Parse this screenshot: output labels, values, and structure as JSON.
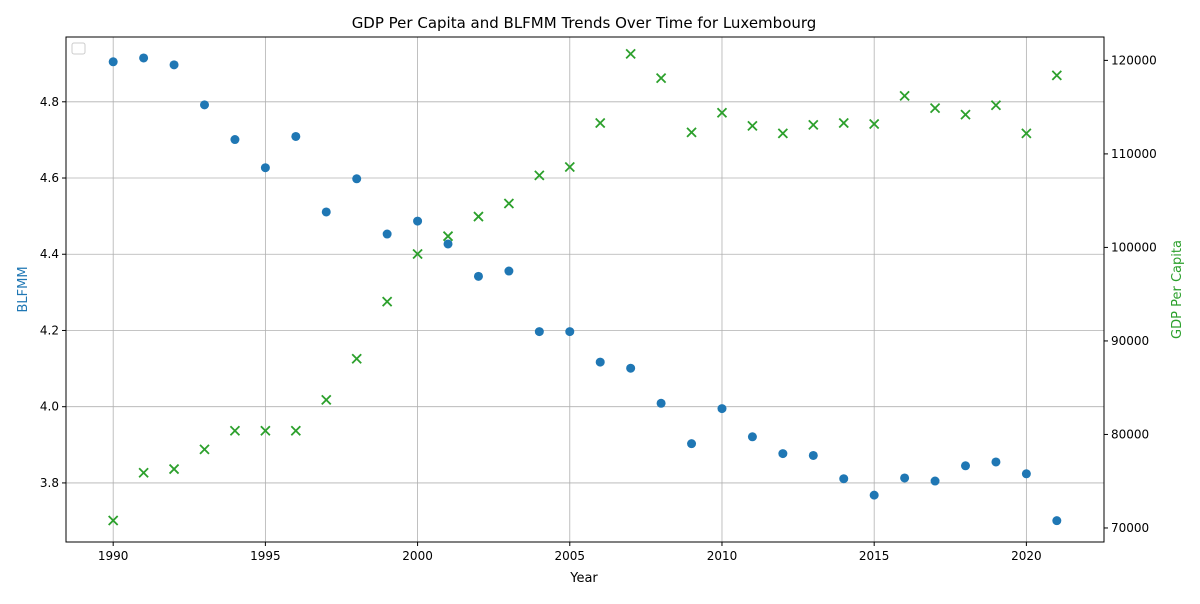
{
  "chart_data": {
    "type": "scatter",
    "title": "GDP Per Capita and BLFMM Trends Over Time for Luxembourg",
    "xlabel": "Year",
    "ylabel_left": "BLFMM",
    "ylabel_right": "GDP Per Capita",
    "xlim": [
      1988.45,
      2022.55
    ],
    "ylim_left": [
      3.645,
      4.97
    ],
    "ylim_right": [
      68500,
      122500
    ],
    "x_ticks": [
      1990,
      1995,
      2000,
      2005,
      2010,
      2015,
      2020
    ],
    "y_left_ticks": [
      3.8,
      4.0,
      4.2,
      4.4,
      4.6,
      4.8
    ],
    "y_right_ticks": [
      70000,
      80000,
      90000,
      100000,
      110000,
      120000
    ],
    "grid": true,
    "legend": {
      "placement": "top-left",
      "entries": []
    },
    "colors": {
      "blfmm": "#1f77b4",
      "gdp": "#2ca02c"
    },
    "series": [
      {
        "axis": "left",
        "marker": "circle",
        "x": [
          1990,
          1991,
          1992,
          1993,
          1994,
          1995,
          1996,
          1997,
          1998,
          1999,
          2000,
          2001,
          2002,
          2003,
          2004,
          2005,
          2006,
          2007,
          2008,
          2009,
          2010,
          2011,
          2012,
          2013,
          2014,
          2015,
          2016,
          2017,
          2018,
          2019,
          2020,
          2021
        ],
        "values": [
          4.905,
          4.915,
          4.897,
          4.792,
          4.701,
          4.627,
          4.709,
          4.511,
          4.598,
          4.453,
          4.487,
          4.427,
          4.342,
          4.356,
          4.197,
          4.197,
          4.117,
          4.101,
          4.009,
          3.903,
          3.995,
          3.921,
          3.877,
          3.872,
          3.811,
          3.768,
          3.813,
          3.805,
          3.845,
          3.855,
          3.824,
          3.701
        ]
      },
      {
        "axis": "right",
        "marker": "x",
        "x": [
          1990,
          1991,
          1992,
          1993,
          1994,
          1995,
          1996,
          1997,
          1998,
          1999,
          2000,
          2001,
          2002,
          2003,
          2004,
          2005,
          2006,
          2007,
          2008,
          2009,
          2010,
          2011,
          2012,
          2013,
          2014,
          2015,
          2016,
          2017,
          2018,
          2019,
          2020,
          2021
        ],
        "values": [
          70800,
          75900,
          76300,
          78400,
          80400,
          80400,
          80400,
          83700,
          88100,
          94200,
          99300,
          101200,
          103300,
          104700,
          107700,
          108600,
          113300,
          120700,
          118100,
          112300,
          114400,
          113000,
          112200,
          113100,
          113300,
          113200,
          116200,
          114900,
          114200,
          115200,
          112200,
          118400
        ]
      }
    ]
  }
}
